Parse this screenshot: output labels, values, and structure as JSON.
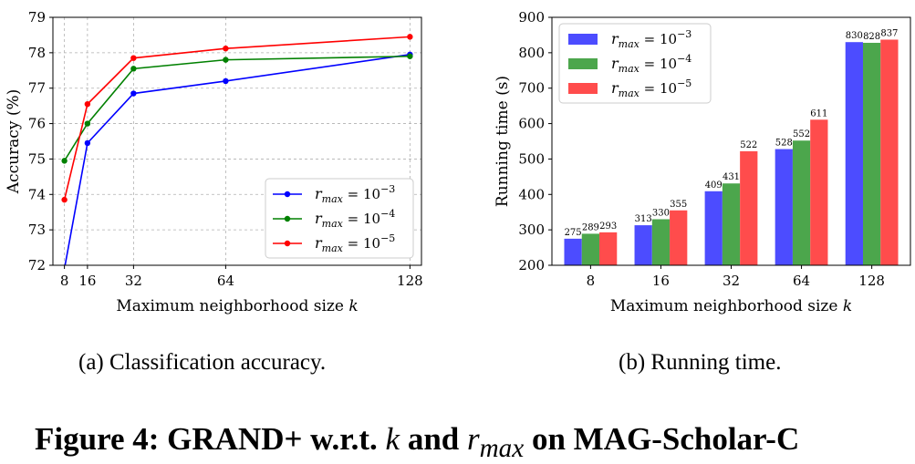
{
  "figure": {
    "title_prefix": "Figure 4: GRAND+ w.r.t.",
    "title_k": "k",
    "title_and": "and",
    "title_r": "r",
    "title_r_sub": "max",
    "title_suffix": "on MAG-Scholar-C",
    "caption_a": "(a)  Classification accuracy.",
    "caption_b": "(b)  Running time."
  },
  "chart_data": [
    {
      "type": "line",
      "xlabel": "Maximum neighborhood size k",
      "ylabel": "Accuracy (%)",
      "x": [
        8,
        16,
        32,
        64,
        128
      ],
      "xticks": [
        8,
        16,
        32,
        64,
        128
      ],
      "xlim": [
        4,
        132
      ],
      "ylim": [
        72,
        79
      ],
      "yticks": [
        72,
        73,
        74,
        75,
        76,
        77,
        78,
        79
      ],
      "grid": true,
      "legend": "bottom-right",
      "series": [
        {
          "name": "r_max = 10^-3",
          "label_sub": "max",
          "label_exp": "−3",
          "color": "#0000ff",
          "values": [
            71.9,
            75.45,
            76.85,
            77.2,
            77.95
          ]
        },
        {
          "name": "r_max = 10^-4",
          "label_sub": "max",
          "label_exp": "−4",
          "color": "#008000",
          "values": [
            74.95,
            76.0,
            77.55,
            77.8,
            77.9
          ]
        },
        {
          "name": "r_max = 10^-5",
          "label_sub": "max",
          "label_exp": "−5",
          "color": "#ff0000",
          "values": [
            73.85,
            76.55,
            77.85,
            78.12,
            78.45
          ]
        }
      ]
    },
    {
      "type": "bar",
      "xlabel": "Maximum neighborhood size k",
      "ylabel": "Running time (s)",
      "categories": [
        "8",
        "16",
        "32",
        "64",
        "128"
      ],
      "ylim": [
        200,
        900
      ],
      "yticks": [
        200,
        300,
        400,
        500,
        600,
        700,
        800,
        900
      ],
      "grid": false,
      "legend": "top-left",
      "series": [
        {
          "name": "r_max = 10^-3",
          "label_sub": "max",
          "label_exp": "−3",
          "color": "#4c4cff",
          "values": [
            275,
            313,
            409,
            528,
            830
          ],
          "labels": [
            "275",
            "313",
            "409",
            "528",
            "830"
          ]
        },
        {
          "name": "r_max = 10^-4",
          "label_sub": "max",
          "label_exp": "−4",
          "color": "#4ca64c",
          "values": [
            289,
            330,
            431,
            552,
            828
          ],
          "labels": [
            "289",
            "330",
            "431",
            "552",
            "828"
          ]
        },
        {
          "name": "r_max = 10^-5",
          "label_sub": "max",
          "label_exp": "−5",
          "color": "#ff4c4c",
          "values": [
            293,
            355,
            522,
            611,
            837
          ],
          "labels": [
            "293",
            "355",
            "522",
            "611",
            "837"
          ]
        }
      ]
    }
  ]
}
